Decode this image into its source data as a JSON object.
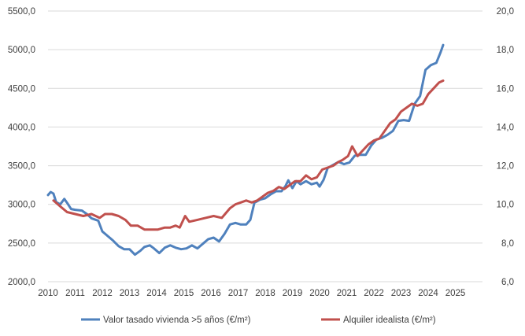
{
  "chart_data": {
    "type": "line",
    "title": "",
    "xlabel": "",
    "ylabel": "",
    "x_ticks": [
      "2010",
      "2011",
      "2012",
      "2013",
      "2014",
      "2015",
      "2016",
      "2017",
      "2018",
      "2019",
      "2020",
      "2021",
      "2022",
      "2023",
      "2024",
      "2025"
    ],
    "x_range": [
      2010,
      2026
    ],
    "y_left": {
      "range": [
        2000,
        5500
      ],
      "ticks": [
        2000,
        2500,
        3000,
        3500,
        4000,
        4500,
        5000,
        5500
      ],
      "tick_labels": [
        "2000,0",
        "2500,0",
        "3000,0",
        "3500,0",
        "4000,0",
        "4500,0",
        "5000,0",
        "5500,0"
      ]
    },
    "y_right": {
      "range": [
        6,
        20
      ],
      "ticks": [
        6,
        8,
        10,
        12,
        14,
        16,
        18,
        20
      ],
      "tick_labels": [
        "6,0",
        "8,0",
        "10,0",
        "12,0",
        "14,0",
        "16,0",
        "18,0",
        "20,0"
      ]
    },
    "grid": "horizontal",
    "legend_position": "bottom",
    "series": [
      {
        "name": "Valor tasado vivienda >5 años (€/m²)",
        "axis": "left",
        "color": "#4f81bd",
        "points": [
          [
            2010.0,
            3120
          ],
          [
            2010.1,
            3160
          ],
          [
            2010.2,
            3140
          ],
          [
            2010.3,
            3030
          ],
          [
            2010.45,
            3000
          ],
          [
            2010.6,
            3070
          ],
          [
            2010.7,
            3020
          ],
          [
            2010.85,
            2940
          ],
          [
            2011.0,
            2930
          ],
          [
            2011.25,
            2920
          ],
          [
            2011.45,
            2870
          ],
          [
            2011.6,
            2820
          ],
          [
            2011.85,
            2790
          ],
          [
            2012.0,
            2650
          ],
          [
            2012.2,
            2590
          ],
          [
            2012.4,
            2530
          ],
          [
            2012.6,
            2460
          ],
          [
            2012.8,
            2420
          ],
          [
            2013.0,
            2420
          ],
          [
            2013.2,
            2350
          ],
          [
            2013.4,
            2400
          ],
          [
            2013.55,
            2450
          ],
          [
            2013.75,
            2470
          ],
          [
            2013.9,
            2430
          ],
          [
            2014.1,
            2370
          ],
          [
            2014.3,
            2440
          ],
          [
            2014.5,
            2470
          ],
          [
            2014.7,
            2440
          ],
          [
            2014.9,
            2420
          ],
          [
            2015.1,
            2430
          ],
          [
            2015.3,
            2470
          ],
          [
            2015.5,
            2430
          ],
          [
            2015.7,
            2490
          ],
          [
            2015.9,
            2550
          ],
          [
            2016.1,
            2570
          ],
          [
            2016.3,
            2520
          ],
          [
            2016.5,
            2620
          ],
          [
            2016.7,
            2740
          ],
          [
            2016.9,
            2760
          ],
          [
            2017.1,
            2740
          ],
          [
            2017.3,
            2740
          ],
          [
            2017.45,
            2800
          ],
          [
            2017.6,
            3020
          ],
          [
            2017.8,
            3060
          ],
          [
            2018.0,
            3080
          ],
          [
            2018.2,
            3130
          ],
          [
            2018.4,
            3170
          ],
          [
            2018.6,
            3170
          ],
          [
            2018.75,
            3240
          ],
          [
            2018.85,
            3310
          ],
          [
            2019.0,
            3210
          ],
          [
            2019.15,
            3300
          ],
          [
            2019.3,
            3260
          ],
          [
            2019.5,
            3300
          ],
          [
            2019.7,
            3260
          ],
          [
            2019.9,
            3280
          ],
          [
            2020.0,
            3230
          ],
          [
            2020.15,
            3320
          ],
          [
            2020.3,
            3470
          ],
          [
            2020.5,
            3510
          ],
          [
            2020.7,
            3550
          ],
          [
            2020.9,
            3520
          ],
          [
            2021.1,
            3540
          ],
          [
            2021.3,
            3630
          ],
          [
            2021.5,
            3640
          ],
          [
            2021.7,
            3640
          ],
          [
            2021.9,
            3760
          ],
          [
            2022.1,
            3840
          ],
          [
            2022.3,
            3860
          ],
          [
            2022.5,
            3900
          ],
          [
            2022.7,
            3950
          ],
          [
            2022.9,
            4080
          ],
          [
            2023.1,
            4090
          ],
          [
            2023.3,
            4080
          ],
          [
            2023.5,
            4300
          ],
          [
            2023.7,
            4400
          ],
          [
            2023.9,
            4740
          ],
          [
            2024.1,
            4800
          ],
          [
            2024.3,
            4830
          ],
          [
            2024.45,
            4960
          ],
          [
            2024.55,
            5060
          ]
        ]
      },
      {
        "name": "Alquiler idealista (€/m²)",
        "axis": "right",
        "color": "#c0504d",
        "points": [
          [
            2010.2,
            10.2
          ],
          [
            2010.45,
            9.9
          ],
          [
            2010.7,
            9.6
          ],
          [
            2011.0,
            9.5
          ],
          [
            2011.3,
            9.4
          ],
          [
            2011.6,
            9.5
          ],
          [
            2011.9,
            9.3
          ],
          [
            2012.1,
            9.5
          ],
          [
            2012.35,
            9.5
          ],
          [
            2012.6,
            9.4
          ],
          [
            2012.85,
            9.2
          ],
          [
            2013.05,
            8.9
          ],
          [
            2013.3,
            8.9
          ],
          [
            2013.55,
            8.7
          ],
          [
            2013.8,
            8.7
          ],
          [
            2014.05,
            8.7
          ],
          [
            2014.3,
            8.8
          ],
          [
            2014.5,
            8.8
          ],
          [
            2014.7,
            8.9
          ],
          [
            2014.85,
            8.8
          ],
          [
            2015.05,
            9.4
          ],
          [
            2015.2,
            9.1
          ],
          [
            2015.5,
            9.2
          ],
          [
            2015.8,
            9.3
          ],
          [
            2016.1,
            9.4
          ],
          [
            2016.4,
            9.3
          ],
          [
            2016.7,
            9.8
          ],
          [
            2016.9,
            10.0
          ],
          [
            2017.1,
            10.1
          ],
          [
            2017.3,
            10.2
          ],
          [
            2017.5,
            10.1
          ],
          [
            2017.7,
            10.2
          ],
          [
            2017.9,
            10.4
          ],
          [
            2018.1,
            10.6
          ],
          [
            2018.3,
            10.7
          ],
          [
            2018.5,
            10.9
          ],
          [
            2018.7,
            10.8
          ],
          [
            2018.9,
            11.0
          ],
          [
            2019.1,
            11.2
          ],
          [
            2019.3,
            11.2
          ],
          [
            2019.5,
            11.5
          ],
          [
            2019.7,
            11.3
          ],
          [
            2019.9,
            11.4
          ],
          [
            2020.1,
            11.8
          ],
          [
            2020.3,
            11.9
          ],
          [
            2020.5,
            12.0
          ],
          [
            2020.7,
            12.2
          ],
          [
            2020.85,
            12.3
          ],
          [
            2021.05,
            12.5
          ],
          [
            2021.2,
            13.0
          ],
          [
            2021.4,
            12.5
          ],
          [
            2021.6,
            12.8
          ],
          [
            2021.8,
            13.1
          ],
          [
            2022.0,
            13.3
          ],
          [
            2022.2,
            13.4
          ],
          [
            2022.4,
            13.8
          ],
          [
            2022.6,
            14.2
          ],
          [
            2022.8,
            14.4
          ],
          [
            2023.0,
            14.8
          ],
          [
            2023.2,
            15.0
          ],
          [
            2023.4,
            15.2
          ],
          [
            2023.6,
            15.1
          ],
          [
            2023.8,
            15.2
          ],
          [
            2024.0,
            15.7
          ],
          [
            2024.2,
            16.0
          ],
          [
            2024.4,
            16.3
          ],
          [
            2024.55,
            16.4
          ]
        ]
      }
    ]
  }
}
